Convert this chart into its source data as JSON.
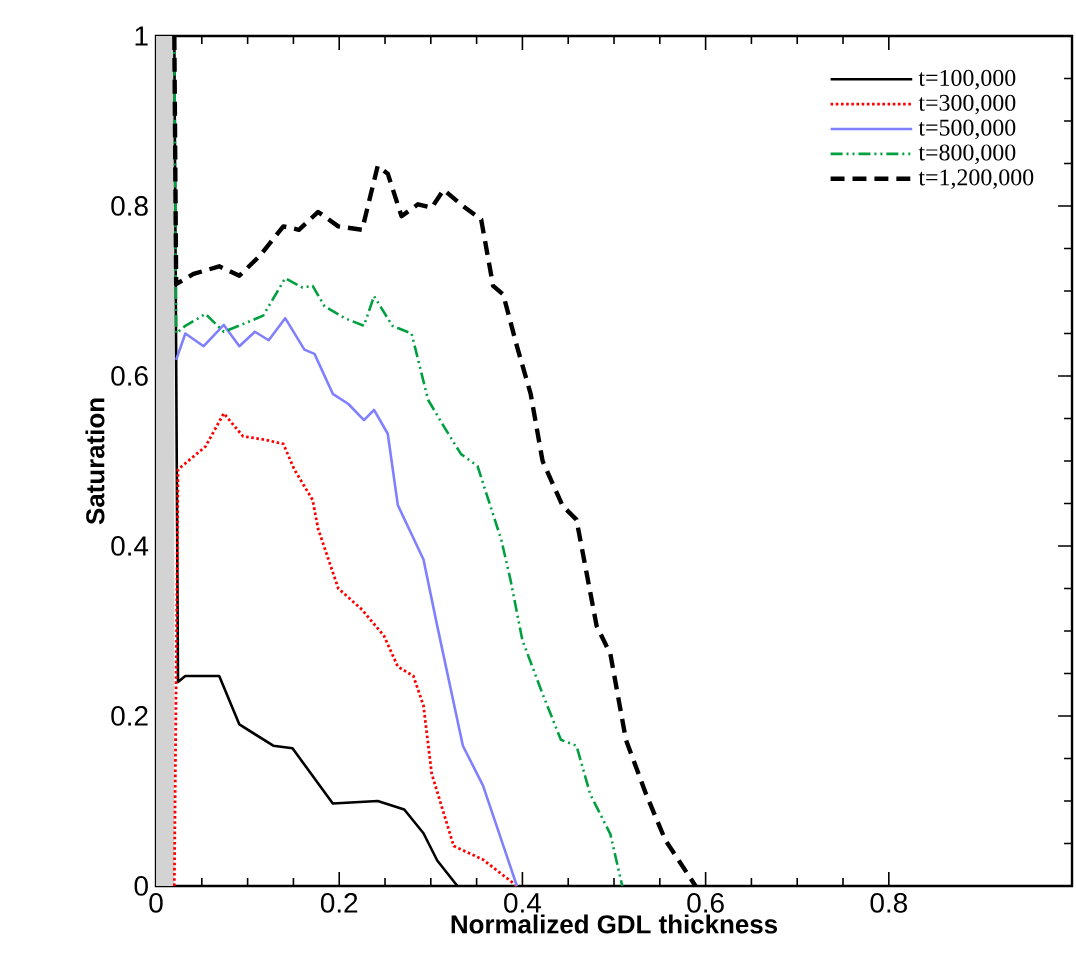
{
  "chart_data": {
    "type": "line",
    "xlabel": "Normalized GDL thickness",
    "ylabel": "Saturation",
    "xlim": [
      0,
      1
    ],
    "ylim": [
      0,
      1
    ],
    "xticks": [
      0,
      0.2,
      0.4,
      0.6,
      0.8
    ],
    "yticks": [
      0,
      0.2,
      0.4,
      0.6,
      0.8,
      1
    ],
    "legend": "top right",
    "grid": false,
    "bands": [
      {
        "axis": "x",
        "from": 0,
        "to": 0.02,
        "color": "#d3d3d3"
      }
    ],
    "series": [
      {
        "name": "t=100,000",
        "color": "#000000",
        "line_style": "solid",
        "x": [
          0.02,
          0.024,
          0.032,
          0.069,
          0.091,
          0.128,
          0.149,
          0.193,
          0.242,
          0.271,
          0.292,
          0.307,
          0.329
        ],
        "values": [
          1,
          0.24,
          0.247,
          0.247,
          0.19,
          0.165,
          0.162,
          0.097,
          0.1,
          0.09,
          0.062,
          0.03,
          0
        ]
      },
      {
        "name": "t=300,000",
        "color": "#ff0000",
        "line_style": "dotted",
        "x": [
          0.02,
          0.024,
          0.054,
          0.074,
          0.095,
          0.119,
          0.139,
          0.151,
          0.171,
          0.177,
          0.199,
          0.225,
          0.249,
          0.264,
          0.281,
          0.292,
          0.301,
          0.325,
          0.357,
          0.394
        ],
        "values": [
          0,
          0.49,
          0.517,
          0.556,
          0.529,
          0.525,
          0.52,
          0.49,
          0.454,
          0.42,
          0.35,
          0.325,
          0.294,
          0.258,
          0.247,
          0.212,
          0.132,
          0.047,
          0.031,
          0
        ]
      },
      {
        "name": "t=500,000",
        "color": "#8080ff",
        "line_style": "solid",
        "x": [
          0.022,
          0.032,
          0.052,
          0.074,
          0.091,
          0.108,
          0.123,
          0.141,
          0.162,
          0.173,
          0.193,
          0.21,
          0.227,
          0.238,
          0.253,
          0.264,
          0.292,
          0.307,
          0.335,
          0.357,
          0.394
        ],
        "values": [
          0.619,
          0.65,
          0.635,
          0.66,
          0.635,
          0.652,
          0.642,
          0.668,
          0.631,
          0.626,
          0.579,
          0.567,
          0.548,
          0.56,
          0.532,
          0.448,
          0.384,
          0.306,
          0.165,
          0.118,
          0
        ]
      },
      {
        "name": "t=800,000",
        "color": "#00a040",
        "line_style": "dashdotdot",
        "x": [
          0.02,
          0.022,
          0.032,
          0.054,
          0.074,
          0.095,
          0.117,
          0.141,
          0.16,
          0.171,
          0.184,
          0.206,
          0.227,
          0.238,
          0.258,
          0.279,
          0.297,
          0.314,
          0.333,
          0.351,
          0.377,
          0.387,
          0.4,
          0.422,
          0.442,
          0.459,
          0.474,
          0.496,
          0.509
        ],
        "values": [
          1,
          0.65,
          0.659,
          0.673,
          0.652,
          0.661,
          0.671,
          0.715,
          0.704,
          0.706,
          0.682,
          0.668,
          0.659,
          0.694,
          0.659,
          0.65,
          0.572,
          0.541,
          0.508,
          0.494,
          0.407,
          0.36,
          0.289,
          0.226,
          0.172,
          0.165,
          0.108,
          0.061,
          0
        ]
      },
      {
        "name": "t=1,200,000",
        "color": "#000000",
        "line_style": "dashed",
        "x": [
          0.02,
          0.022,
          0.041,
          0.069,
          0.091,
          0.113,
          0.139,
          0.156,
          0.177,
          0.199,
          0.225,
          0.242,
          0.253,
          0.268,
          0.286,
          0.301,
          0.314,
          0.335,
          0.355,
          0.368,
          0.379,
          0.394,
          0.409,
          0.422,
          0.444,
          0.459,
          0.481,
          0.496,
          0.513,
          0.535,
          0.556,
          0.589
        ],
        "values": [
          1,
          0.708,
          0.72,
          0.729,
          0.718,
          0.741,
          0.776,
          0.772,
          0.793,
          0.776,
          0.772,
          0.847,
          0.838,
          0.788,
          0.802,
          0.798,
          0.819,
          0.8,
          0.784,
          0.706,
          0.696,
          0.635,
          0.579,
          0.5,
          0.447,
          0.431,
          0.306,
          0.273,
          0.172,
          0.108,
          0.054,
          0
        ]
      }
    ]
  }
}
